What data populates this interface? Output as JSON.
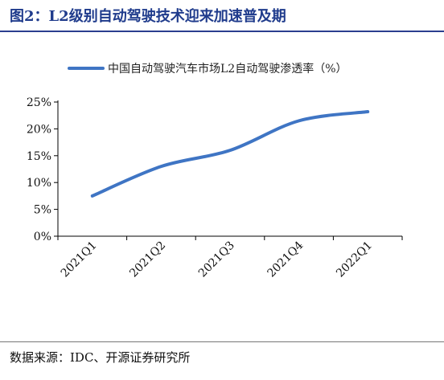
{
  "figure": {
    "title": "图2：L2级别自动驾驶技术迎来加速普及期",
    "source": "数据来源：IDC、开源证券研究所"
  },
  "chart_data": {
    "type": "line",
    "categories": [
      "2021Q1",
      "2021Q2",
      "2021Q3",
      "2021Q4",
      "2022Q1"
    ],
    "series": [
      {
        "name": "中国自动驾驶汽车市场L2自动驾驶渗透率（%）",
        "values": [
          7.5,
          13.0,
          16.0,
          21.5,
          23.2
        ],
        "color": "#3f75c4"
      }
    ],
    "ylim": [
      0,
      25
    ],
    "yticks": [
      0,
      5,
      10,
      15,
      20,
      25
    ],
    "ytick_labels": [
      "0%",
      "5%",
      "10%",
      "15%",
      "20%",
      "25%"
    ],
    "grid": false,
    "legend": "top",
    "xlabel": "",
    "ylabel": ""
  }
}
